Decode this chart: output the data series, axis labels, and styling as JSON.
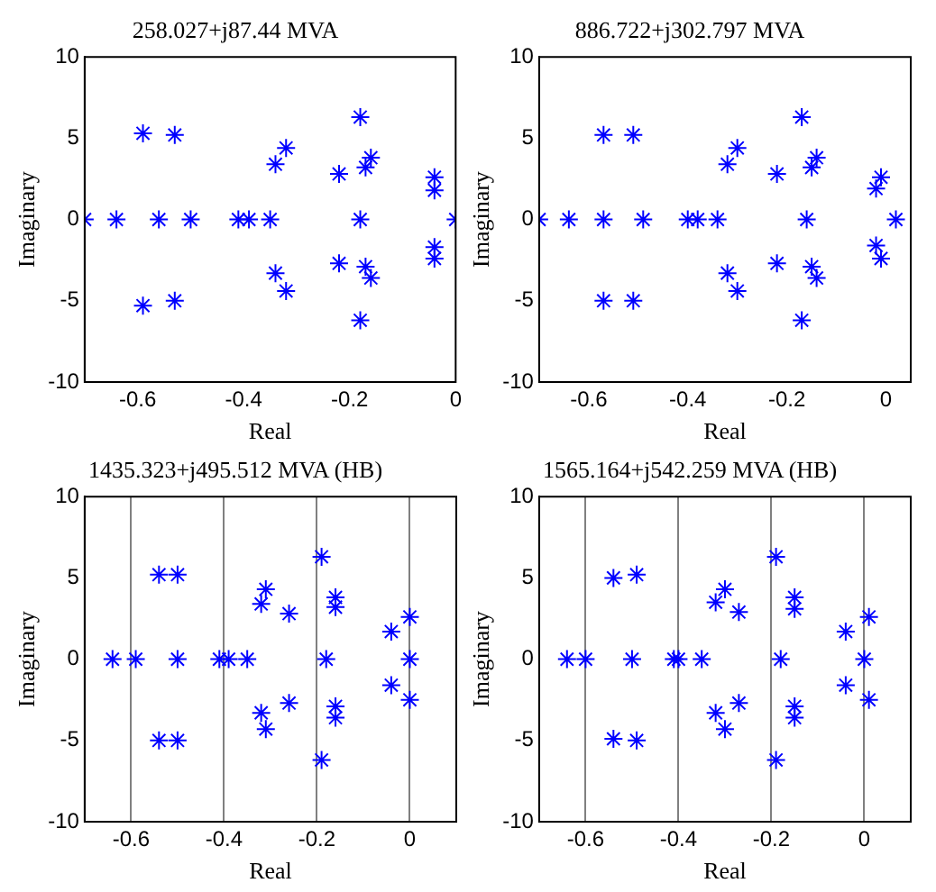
{
  "chart_data": [
    {
      "type": "scatter",
      "title": "258.027+j87.44 MVA",
      "xlabel": "Real",
      "ylabel": "Imaginary",
      "xlim": [
        -0.7,
        0
      ],
      "xticks": [
        -0.6,
        -0.4,
        -0.2,
        0
      ],
      "ylim": [
        -10,
        10
      ],
      "yticks": [
        -10,
        -5,
        0,
        5,
        10
      ],
      "grid": false,
      "marker": "cross",
      "legend": false,
      "series": [
        {
          "color": "#0000ff",
          "x": [
            -0.7,
            -0.64,
            -0.59,
            -0.59,
            -0.56,
            -0.53,
            -0.53,
            -0.5,
            -0.41,
            -0.39,
            -0.35,
            -0.34,
            -0.34,
            -0.32,
            -0.32,
            -0.22,
            -0.22,
            -0.18,
            -0.18,
            -0.18,
            -0.17,
            -0.17,
            -0.16,
            -0.16,
            -0.04,
            -0.04,
            -0.04,
            -0.04,
            0
          ],
          "values": [
            0,
            0,
            5.3,
            -5.3,
            0,
            5.2,
            -5.0,
            0,
            0,
            0,
            0,
            3.4,
            -3.3,
            4.4,
            -4.4,
            2.8,
            -2.7,
            6.3,
            -6.2,
            0,
            3.2,
            -2.9,
            3.8,
            -3.6,
            2.6,
            1.8,
            -1.7,
            -2.4,
            0
          ]
        }
      ]
    },
    {
      "type": "scatter",
      "title": "886.722+j302.797 MVA",
      "xlabel": "Real",
      "ylabel": "Imaginary",
      "xlim": [
        -0.7,
        0.05
      ],
      "xticks": [
        -0.6,
        -0.4,
        -0.2,
        0
      ],
      "ylim": [
        -10,
        10
      ],
      "yticks": [
        -10,
        -5,
        0,
        5,
        10
      ],
      "grid": false,
      "marker": "cross",
      "legend": false,
      "series": [
        {
          "color": "#0000ff",
          "x": [
            -0.7,
            -0.64,
            -0.57,
            -0.57,
            -0.57,
            -0.51,
            -0.51,
            -0.49,
            -0.4,
            -0.38,
            -0.34,
            -0.32,
            -0.32,
            -0.3,
            -0.3,
            -0.22,
            -0.22,
            -0.17,
            -0.17,
            -0.16,
            -0.15,
            -0.15,
            -0.14,
            -0.14,
            -0.02,
            -0.01,
            -0.02,
            -0.01,
            0.02
          ],
          "values": [
            0,
            0,
            5.2,
            -5.0,
            0,
            5.2,
            -5.0,
            0,
            0,
            0,
            0,
            3.4,
            -3.3,
            4.4,
            -4.4,
            2.8,
            -2.7,
            6.3,
            -6.2,
            0,
            3.2,
            -2.9,
            3.8,
            -3.6,
            1.9,
            2.6,
            -1.6,
            -2.4,
            0
          ]
        }
      ]
    },
    {
      "type": "scatter",
      "title": "1435.323+j495.512 MVA (HB)",
      "xlabel": "Real",
      "ylabel": "Imaginary",
      "xlim": [
        -0.7,
        0.1
      ],
      "xticks": [
        -0.6,
        -0.4,
        -0.2,
        0
      ],
      "ylim": [
        -10,
        10
      ],
      "yticks": [
        -10,
        -5,
        0,
        5,
        10
      ],
      "grid": "x",
      "marker": "cross",
      "legend": false,
      "series": [
        {
          "color": "#0000ff",
          "x": [
            -0.64,
            -0.59,
            -0.54,
            -0.54,
            -0.5,
            -0.5,
            -0.5,
            -0.41,
            -0.39,
            -0.35,
            -0.32,
            -0.32,
            -0.31,
            -0.31,
            -0.26,
            -0.26,
            -0.19,
            -0.19,
            -0.18,
            -0.16,
            -0.16,
            -0.16,
            -0.16,
            -0.04,
            -0.04,
            0,
            0,
            0
          ],
          "values": [
            0,
            0,
            5.2,
            -5.0,
            5.2,
            -5.0,
            0,
            0,
            0,
            0,
            3.4,
            -3.3,
            4.3,
            -4.3,
            2.8,
            -2.7,
            6.3,
            -6.2,
            0,
            3.2,
            -2.9,
            3.8,
            -3.6,
            1.7,
            -1.6,
            2.6,
            0,
            -2.5
          ]
        }
      ]
    },
    {
      "type": "scatter",
      "title": "1565.164+j542.259 MVA (HB)",
      "xlabel": "Real",
      "ylabel": "Imaginary",
      "xlim": [
        -0.7,
        0.1
      ],
      "xticks": [
        -0.6,
        -0.4,
        -0.2,
        0
      ],
      "ylim": [
        -10,
        10
      ],
      "yticks": [
        -10,
        -5,
        0,
        5,
        10
      ],
      "grid": "x",
      "marker": "cross",
      "legend": false,
      "series": [
        {
          "color": "#0000ff",
          "x": [
            -0.64,
            -0.6,
            -0.54,
            -0.54,
            -0.49,
            -0.49,
            -0.5,
            -0.41,
            -0.4,
            -0.35,
            -0.32,
            -0.32,
            -0.3,
            -0.3,
            -0.27,
            -0.27,
            -0.19,
            -0.19,
            -0.18,
            -0.15,
            -0.15,
            -0.15,
            -0.15,
            -0.04,
            -0.04,
            0,
            0.01,
            0.01
          ],
          "values": [
            0,
            0,
            5.0,
            -4.9,
            5.2,
            -5.0,
            0,
            0,
            0,
            0,
            3.5,
            -3.3,
            4.3,
            -4.3,
            2.9,
            -2.7,
            6.3,
            -6.2,
            0,
            3.1,
            -2.9,
            3.8,
            -3.6,
            1.7,
            -1.6,
            0,
            2.6,
            -2.5
          ]
        }
      ]
    }
  ]
}
